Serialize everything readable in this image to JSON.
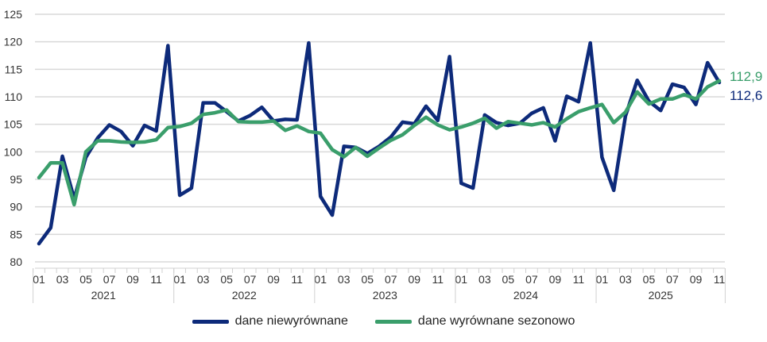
{
  "chart_data": {
    "type": "line",
    "title": "",
    "xlabel": "",
    "ylabel": "",
    "ylim": [
      80,
      125
    ],
    "yticks": [
      80,
      85,
      90,
      95,
      100,
      105,
      110,
      115,
      120,
      125
    ],
    "grid": true,
    "legend_position": "bottom",
    "years": [
      "2021",
      "2022",
      "2023",
      "2024",
      "2025"
    ],
    "month_tick_labels": [
      "01",
      "03",
      "05",
      "07",
      "09",
      "11"
    ],
    "series": [
      {
        "name": "dane niewyrównane",
        "color": "#0d2a7a",
        "end_label": "112,6",
        "values": [
          83.3,
          86.2,
          99.2,
          91.5,
          99.0,
          102.5,
          104.9,
          103.7,
          101.1,
          104.8,
          103.8,
          119.3,
          92.1,
          93.4,
          108.9,
          108.9,
          107.3,
          105.6,
          106.6,
          108.1,
          105.6,
          105.9,
          105.8,
          119.8,
          91.9,
          88.5,
          101.0,
          100.8,
          99.7,
          101.0,
          102.7,
          105.4,
          105.1,
          108.3,
          105.7,
          117.3,
          94.3,
          93.4,
          106.7,
          105.3,
          104.8,
          105.2,
          107.0,
          108.0,
          102.0,
          110.1,
          109.1,
          119.8,
          99.0,
          93.0,
          106.5,
          113.0,
          109.2,
          107.5,
          112.3,
          111.7,
          108.6,
          116.2,
          112.6
        ]
      },
      {
        "name": "dane wyrównane sezonowo",
        "color": "#3a9e6b",
        "end_label": "112,9",
        "values": [
          95.3,
          98.0,
          98.0,
          90.4,
          100.0,
          102.0,
          102.0,
          101.8,
          101.7,
          101.8,
          102.2,
          104.4,
          104.6,
          105.2,
          106.8,
          107.1,
          107.6,
          105.5,
          105.4,
          105.4,
          105.6,
          103.9,
          104.7,
          103.7,
          103.4,
          100.4,
          99.1,
          100.8,
          99.2,
          100.7,
          102.1,
          103.1,
          104.8,
          106.3,
          104.9,
          104.0,
          104.5,
          105.2,
          106.1,
          104.3,
          105.5,
          105.2,
          104.9,
          105.3,
          104.5,
          106.0,
          107.3,
          108.0,
          108.6,
          105.3,
          107.2,
          110.9,
          108.7,
          109.6,
          109.6,
          110.4,
          109.6,
          111.8,
          112.9
        ]
      }
    ]
  }
}
